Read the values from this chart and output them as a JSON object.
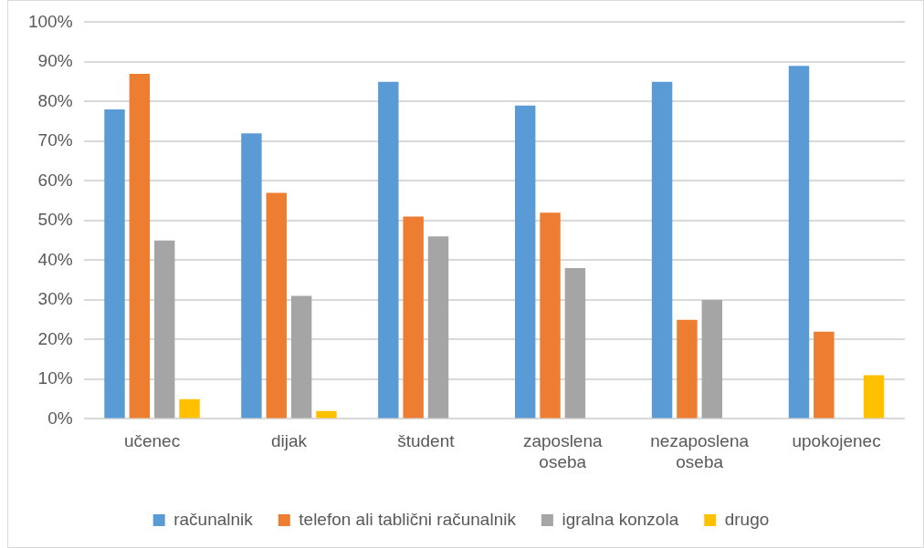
{
  "chart_data": {
    "type": "bar",
    "categories": [
      "učenec",
      "dijak",
      "študent",
      "zaposlena oseba",
      "nezaposlena oseba",
      "upokojenec"
    ],
    "series": [
      {
        "name": "računalnik",
        "color": "#5b9bd5",
        "values": [
          78,
          72,
          85,
          79,
          85,
          89
        ]
      },
      {
        "name": "telefon ali tablični računalnik",
        "color": "#ed7d31",
        "values": [
          87,
          57,
          51,
          52,
          25,
          22
        ]
      },
      {
        "name": "igralna konzola",
        "color": "#a5a5a5",
        "values": [
          45,
          31,
          46,
          38,
          30,
          0
        ]
      },
      {
        "name": "drugo",
        "color": "#ffc000",
        "values": [
          5,
          2,
          0,
          0,
          0,
          11
        ]
      }
    ],
    "ylim": [
      0,
      100
    ],
    "yticks": [
      {
        "value": 0,
        "label": "0%"
      },
      {
        "value": 10,
        "label": "10%"
      },
      {
        "value": 20,
        "label": "20%"
      },
      {
        "value": 30,
        "label": "30%"
      },
      {
        "value": 40,
        "label": "40%"
      },
      {
        "value": 50,
        "label": "50%"
      },
      {
        "value": 60,
        "label": "60%"
      },
      {
        "value": 70,
        "label": "70%"
      },
      {
        "value": 80,
        "label": "80%"
      },
      {
        "value": 90,
        "label": "90%"
      },
      {
        "value": 100,
        "label": "100%"
      }
    ],
    "grid": "y",
    "legend": "bottom"
  }
}
